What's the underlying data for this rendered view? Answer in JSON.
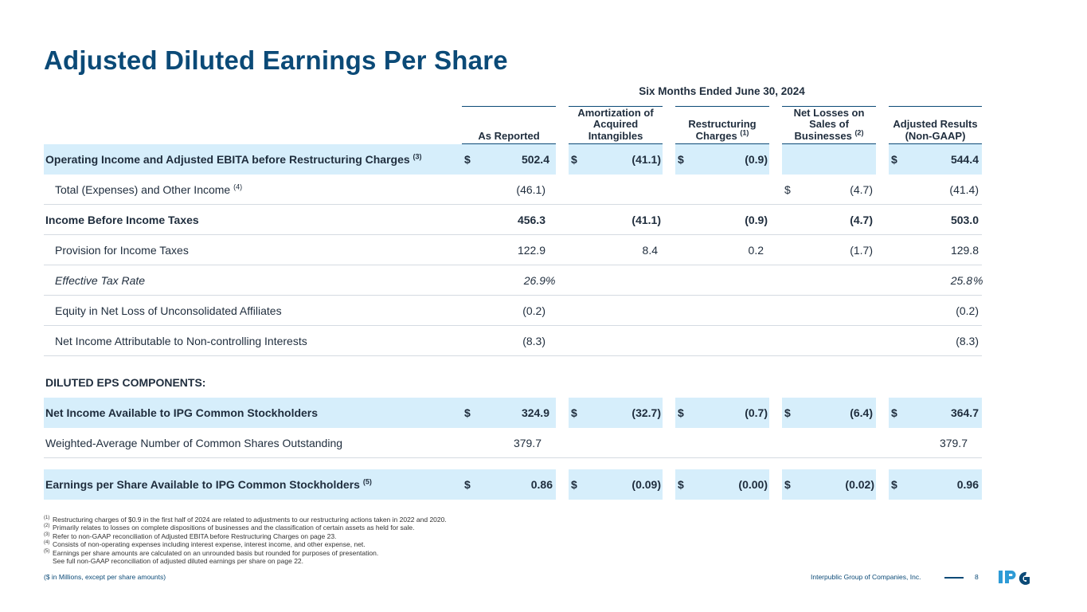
{
  "title": "Adjusted Diluted Earnings Per Share",
  "period": "Six Months Ended June 30, 2024",
  "columns": {
    "as_reported": "As Reported",
    "amortization": "Amortization of Acquired Intangibles",
    "restructuring": "Restructuring Charges",
    "restructuring_fn": "(1)",
    "net_losses": "Net Losses on Sales of Businesses",
    "net_losses_fn": "(2)",
    "adjusted": "Adjusted Results (Non-GAAP)"
  },
  "rows": {
    "op_income": {
      "label": "Operating Income and Adjusted EBITA before Restructuring Charges",
      "fn": "(3)",
      "c1": "502.4",
      "c2": "(41.1)",
      "c3": "(0.9)",
      "c5": "544.4"
    },
    "total_exp": {
      "label": "Total (Expenses) and Other Income",
      "fn": "(4)",
      "c1": "(46.1)",
      "c4": "(4.7)",
      "c5": "(41.4)"
    },
    "pretax": {
      "label": "Income Before Income Taxes",
      "c1": "456.3",
      "c2": "(41.1)",
      "c3": "(0.9)",
      "c4": "(4.7)",
      "c5": "503.0"
    },
    "tax": {
      "label": "Provision for Income Taxes",
      "c1": "122.9",
      "c2": "8.4",
      "c3": "0.2",
      "c4": "(1.7)",
      "c5": "129.8"
    },
    "etr": {
      "label": "Effective Tax Rate",
      "c1": "26.9",
      "c5": "25.8",
      "pct": "%"
    },
    "equity": {
      "label": "Equity in Net Loss of Unconsolidated Affiliates",
      "c1": "(0.2)",
      "c5": "(0.2)"
    },
    "nci": {
      "label": "Net Income Attributable to Non-controlling Interests",
      "c1": "(8.3)",
      "c5": "(8.3)"
    },
    "net_income": {
      "label": "Net Income Available to IPG Common Stockholders",
      "c1": "324.9",
      "c2": "(32.7)",
      "c3": "(0.7)",
      "c4": "(6.4)",
      "c5": "364.7"
    },
    "shares": {
      "label": "Weighted-Average Number of Common Shares Outstanding",
      "c1": "379.7",
      "c5": "379.7"
    },
    "eps": {
      "label": "Earnings per Share Available to IPG Common Stockholders",
      "fn": "(5)",
      "c1": "0.86",
      "c2": "(0.09)",
      "c3": "(0.00)",
      "c4": "(0.02)",
      "c5": "0.96"
    }
  },
  "currency": "$",
  "subhead": "DILUTED EPS COMPONENTS:",
  "footnotes": [
    {
      "num": "(1)",
      "text": "Restructuring charges of $0.9 in the first half of 2024 are related to adjustments to our restructuring actions taken in 2022 and 2020."
    },
    {
      "num": "(2)",
      "text": "Primarily relates to losses on complete dispositions of businesses and the classification of certain assets as held for sale."
    },
    {
      "num": "(3)",
      "text": "Refer to non-GAAP reconciliation of Adjusted EBITA before Restructuring Charges on page 23."
    },
    {
      "num": "(4)",
      "text": "Consists of non-operating expenses including interest expense, interest income, and other expense, net."
    },
    {
      "num": "(5)",
      "text": "Earnings per share amounts are calculated on an unrounded basis but rounded for purposes of presentation."
    },
    {
      "num": "",
      "text": "See full non-GAAP reconciliation of adjusted diluted earnings per share on page 22."
    }
  ],
  "units_note": "($ in Millions, except per share amounts)",
  "company": "Interpublic Group of Companies, Inc.",
  "page_number": "8",
  "logo_text": "IPG",
  "colors": {
    "brand": "#0b4a77",
    "highlight": "#d6eefb",
    "logo": "#2e9bd6"
  }
}
